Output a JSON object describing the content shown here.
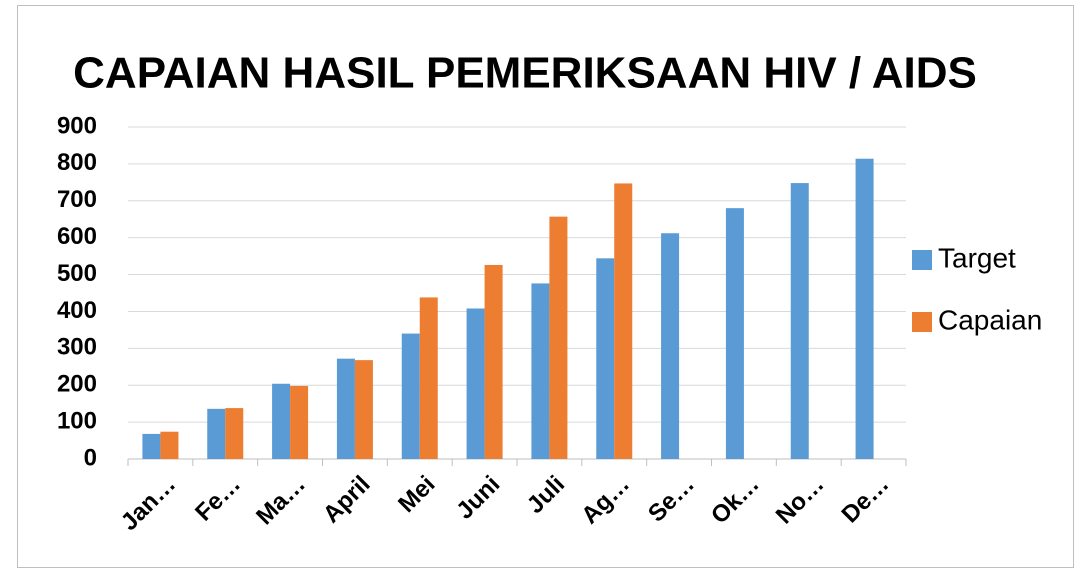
{
  "chart_data": {
    "type": "bar",
    "title": "CAPAIAN  HASIL PEMERIKSAAN HIV / AIDS",
    "categories": [
      "Jan…",
      "Fe…",
      "Ma…",
      "April",
      "Mei",
      "Juni",
      "Juli",
      "Ag…",
      "Se…",
      "Ok…",
      "No…",
      "De…"
    ],
    "series": [
      {
        "name": "Target",
        "color": "#5b9bd5",
        "values": [
          68,
          136,
          204,
          272,
          340,
          408,
          476,
          544,
          612,
          680,
          748,
          814
        ]
      },
      {
        "name": "Capaian",
        "color": "#ed7d31",
        "values": [
          74,
          138,
          198,
          268,
          438,
          526,
          657,
          747,
          null,
          null,
          null,
          null
        ]
      }
    ],
    "ylim": [
      0,
      900
    ],
    "yticks": [
      0,
      100,
      200,
      300,
      400,
      500,
      600,
      700,
      800,
      900
    ],
    "grid": true,
    "legend": "right"
  }
}
